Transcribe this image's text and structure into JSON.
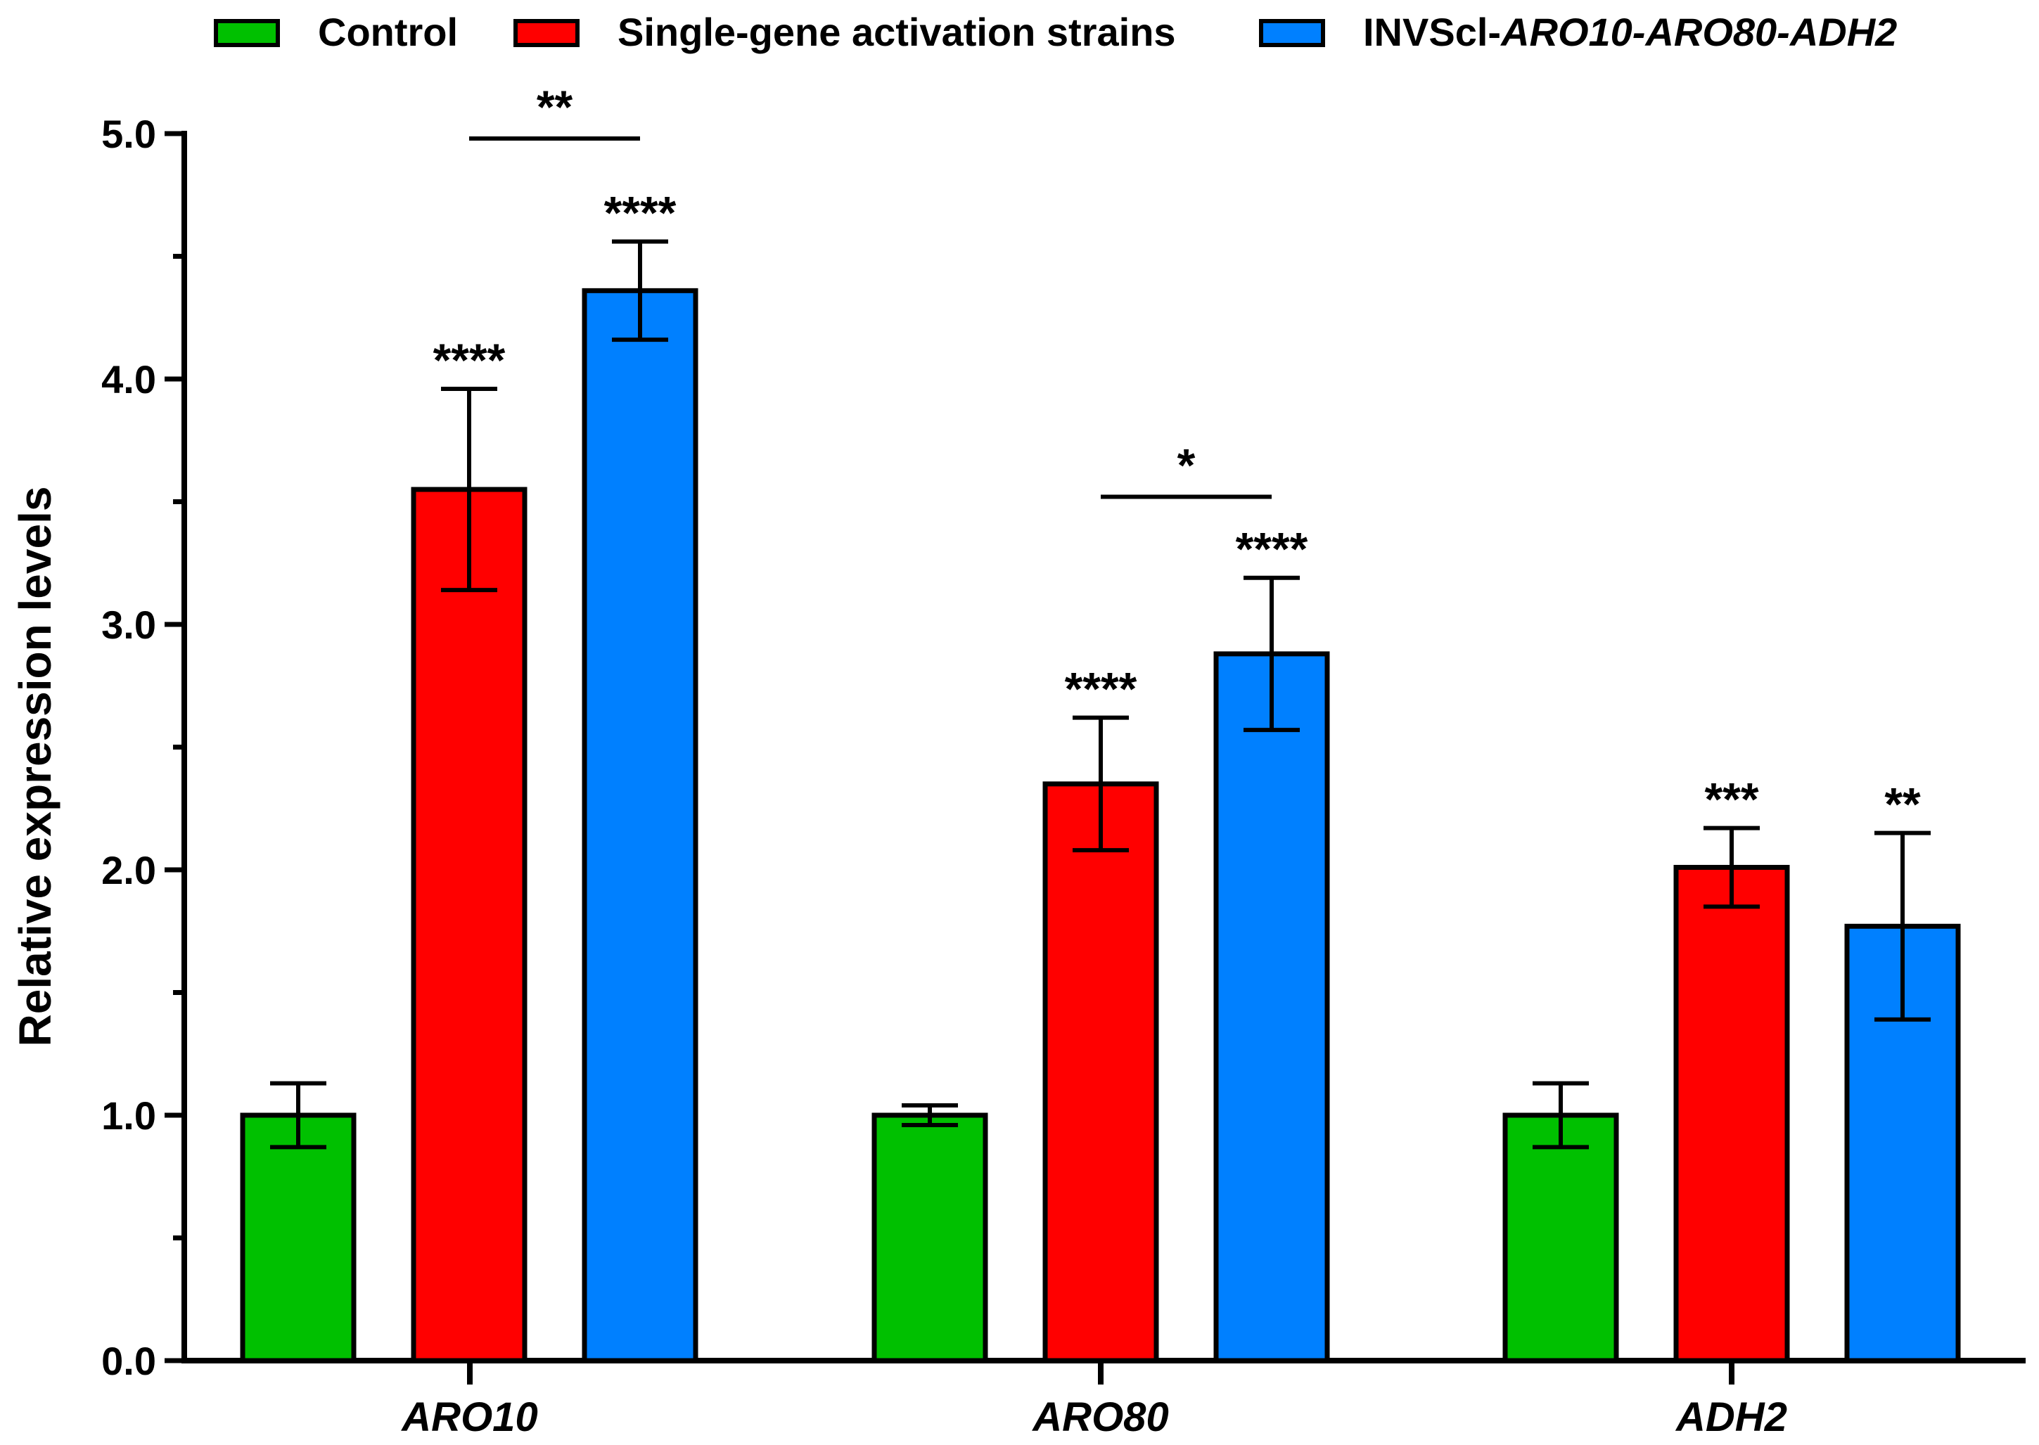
{
  "chart_data": {
    "type": "bar",
    "title": "",
    "xlabel": "",
    "ylabel": "Relative expression levels",
    "ylim": [
      0,
      5
    ],
    "yticks": [
      "0.0",
      "1.0",
      "2.0",
      "3.0",
      "4.0",
      "5.0"
    ],
    "categories": [
      "ARO10",
      "ARO80",
      "ADH2"
    ],
    "legend_position": "top",
    "series": [
      {
        "name": "Control",
        "color": "#00c000",
        "values": [
          1.0,
          1.0,
          1.0
        ],
        "errors": [
          0.13,
          0.04,
          0.13
        ],
        "annotations": [
          "",
          "",
          ""
        ]
      },
      {
        "name": "Single-gene activation strains",
        "color": "#ff0000",
        "values": [
          3.55,
          2.35,
          2.01
        ],
        "errors": [
          0.41,
          0.27,
          0.16
        ],
        "annotations": [
          "****",
          "****",
          "***"
        ]
      },
      {
        "name": "INVScl-ARO10-ARO80-ADH2",
        "color": "#0080ff",
        "values": [
          4.36,
          2.88,
          1.77
        ],
        "errors": [
          0.2,
          0.31,
          0.38
        ],
        "annotations": [
          "****",
          "****",
          "**"
        ]
      }
    ],
    "legend_parts": [
      [
        {
          "text": "Control",
          "italic": false
        }
      ],
      [
        {
          "text": "Single-gene activation strains",
          "italic": false
        }
      ],
      [
        {
          "text": "INVScl-",
          "italic": false
        },
        {
          "text": "ARO10-ARO80-ADH2",
          "italic": true
        }
      ]
    ],
    "comparisons": [
      {
        "category": 0,
        "from_series": 1,
        "to_series": 2,
        "label": "**",
        "y": 4.98
      },
      {
        "category": 1,
        "from_series": 1,
        "to_series": 2,
        "label": "*",
        "y": 3.52
      }
    ]
  }
}
